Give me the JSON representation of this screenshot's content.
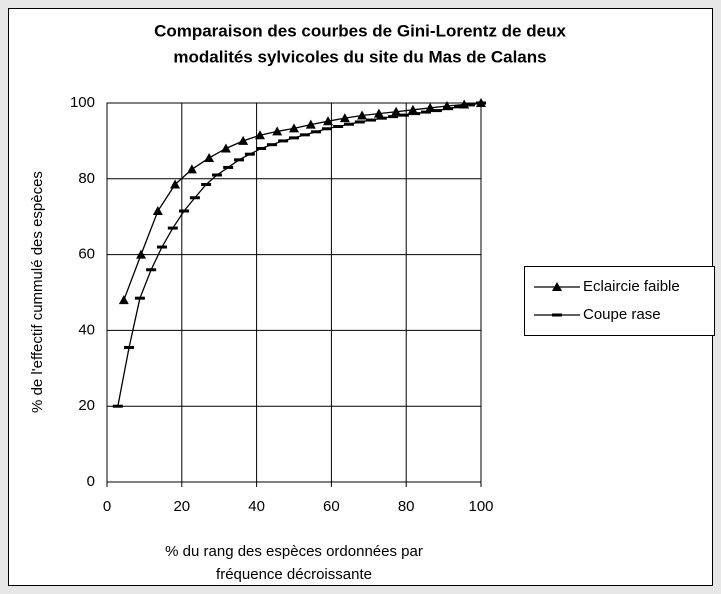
{
  "chart_data": {
    "type": "line",
    "title": [
      "Comparaison des courbes de Gini-Lorentz de deux",
      "modalités sylvicoles du site du Mas de Calans"
    ],
    "xlabel": [
      "% du rang des espèces ordonnées par",
      "fréquence décroissante"
    ],
    "ylabel": "% de l'effectif cummulé des espèces",
    "xlim": [
      0,
      100
    ],
    "xticks": [
      0,
      20,
      40,
      60,
      80,
      100
    ],
    "ylim": [
      0,
      100
    ],
    "yticks": [
      0,
      20,
      40,
      60,
      80,
      100
    ],
    "grid": true,
    "legend": "right",
    "series": [
      {
        "name": "Eclaircie faible",
        "color": "#000000",
        "marker": "triangle",
        "x": [
          4.5,
          9.1,
          13.6,
          18.2,
          22.7,
          27.3,
          31.8,
          36.4,
          40.9,
          45.5,
          50,
          54.5,
          59.1,
          63.6,
          68.2,
          72.7,
          77.3,
          81.8,
          86.4,
          90.9,
          95.5,
          100
        ],
        "values": [
          48,
          60,
          71.5,
          78.5,
          82.5,
          85.5,
          88,
          90,
          91.5,
          92.5,
          93.3,
          94.3,
          95.2,
          96,
          96.7,
          97.2,
          97.7,
          98.2,
          98.7,
          99.2,
          99.6,
          100
        ]
      },
      {
        "name": "Coupe rase",
        "color": "#000000",
        "marker": "dash",
        "x": [
          2.9,
          5.9,
          8.8,
          11.8,
          14.7,
          17.6,
          20.6,
          23.5,
          26.5,
          29.4,
          32.4,
          35.3,
          38.2,
          41.2,
          44.1,
          47.1,
          50,
          52.9,
          55.9,
          58.8,
          61.8,
          64.7,
          67.6,
          70.6,
          73.5,
          76.5,
          79.4,
          82.4,
          85.3,
          88.2,
          91.2,
          94.1,
          97.1,
          100
        ],
        "values": [
          20,
          35.5,
          48.5,
          56,
          62,
          67,
          71.5,
          75,
          78.5,
          81,
          83,
          85,
          86.5,
          88,
          89,
          90,
          90.8,
          91.6,
          92.4,
          93.2,
          93.8,
          94.4,
          95,
          95.5,
          96,
          96.4,
          96.8,
          97.2,
          97.6,
          98,
          98.5,
          99,
          99.5,
          100
        ]
      }
    ]
  }
}
